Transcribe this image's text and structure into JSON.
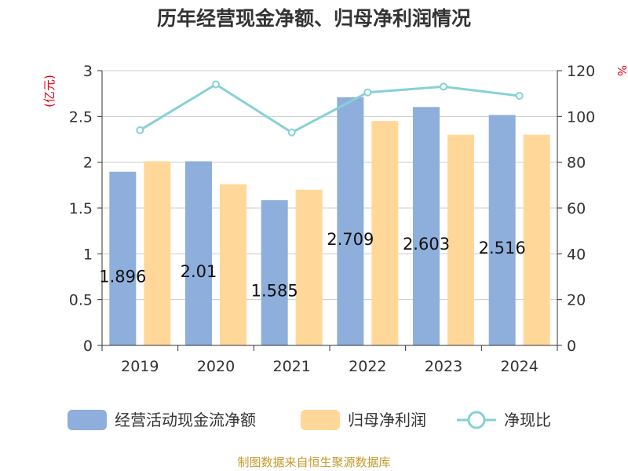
{
  "chart_data": {
    "type": "bar",
    "title": "历年经营现金净额、归母净利润情况",
    "categories": [
      "2019",
      "2020",
      "2021",
      "2022",
      "2023",
      "2024"
    ],
    "y_left": {
      "unit": "(亿元)",
      "ylim": [
        0,
        3
      ],
      "ticks": [
        "0",
        "0.5",
        "1",
        "1.5",
        "2",
        "2.5",
        "3"
      ]
    },
    "y_right": {
      "unit": "%",
      "ylim": [
        0,
        120
      ],
      "ticks": [
        "0",
        "20",
        "40",
        "60",
        "80",
        "100",
        "120"
      ]
    },
    "series": [
      {
        "name": "经营活动现金流净额",
        "type": "bar",
        "axis": "left",
        "color": "#8eaedb",
        "values": [
          1.896,
          2.01,
          1.585,
          2.709,
          2.603,
          2.516
        ],
        "labels": [
          "1.896",
          "2.01",
          "1.585",
          "2.709",
          "2.603",
          "2.516"
        ]
      },
      {
        "name": "归母净利润",
        "type": "bar",
        "axis": "left",
        "color": "#ffd899",
        "values": [
          2.01,
          1.76,
          1.7,
          2.45,
          2.3,
          2.3
        ]
      },
      {
        "name": "净现比",
        "type": "line",
        "axis": "right",
        "color": "#86d1d6",
        "values": [
          94,
          114,
          93,
          110.5,
          113,
          109
        ]
      }
    ],
    "grid": true,
    "legend": "bottom"
  },
  "source": "制图数据来自恒生聚源数据库"
}
